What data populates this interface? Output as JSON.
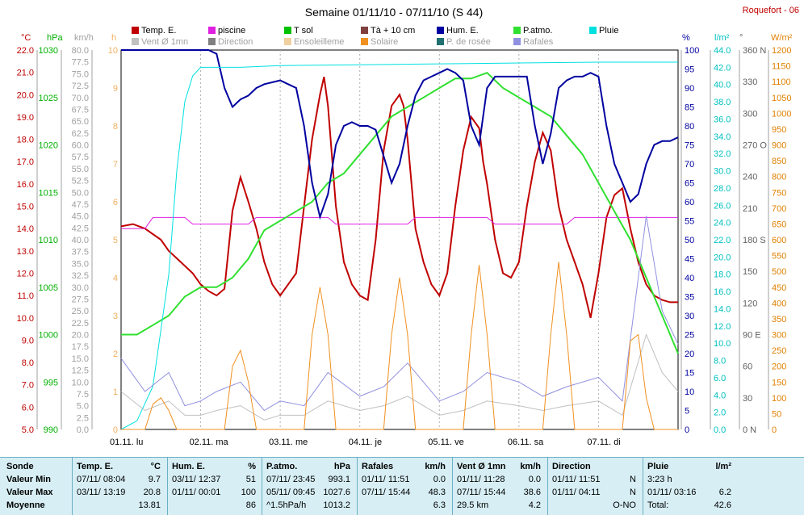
{
  "header": {
    "title": "Semaine 01/11/10 - 07/11/10 (S 44)",
    "station": "Roquefort - 06"
  },
  "legend": [
    {
      "label": "Temp. E.",
      "color": "#c00000"
    },
    {
      "label": "piscine",
      "color": "#e020e0"
    },
    {
      "label": "T sol",
      "color": "#00c000"
    },
    {
      "label": "Tà + 10 cm",
      "color": "#804040"
    },
    {
      "label": "Hum. E.",
      "color": "#0000a0"
    },
    {
      "label": "P.atmo.",
      "color": "#30e030"
    },
    {
      "label": "Pluie",
      "color": "#00e0e0"
    },
    {
      "label": "Vent Ø 1mn",
      "color": "#c0c0c0"
    },
    {
      "label": "Direction",
      "color": "#808080"
    },
    {
      "label": "Ensoleilleme",
      "color": "#f0d0a0"
    },
    {
      "label": "Solaire",
      "color": "#f09020"
    },
    {
      "label": "P. de rosée",
      "color": "#207070"
    },
    {
      "label": "Rafales",
      "color": "#9090e0"
    }
  ],
  "axes": {
    "temp": {
      "unit": "°C",
      "color": "#c00000",
      "ticks": [
        "22.0",
        "21.0",
        "20.0",
        "19.0",
        "18.0",
        "17.0",
        "16.0",
        "15.0",
        "14.0",
        "13.0",
        "12.0",
        "11.0",
        "10.0",
        "9.0",
        "8.0",
        "7.0",
        "6.0",
        "5.0"
      ]
    },
    "press": {
      "unit": "hPa",
      "color": "#00b000",
      "ticks": [
        "1030",
        "1025",
        "1020",
        "1015",
        "1010",
        "1005",
        "1000",
        "995",
        "990"
      ]
    },
    "wind": {
      "unit": "km/h",
      "color": "#a0a0a0",
      "ticks": [
        "80.0",
        "77.5",
        "75.0",
        "72.5",
        "70.0",
        "67.5",
        "65.0",
        "62.5",
        "60.0",
        "57.5",
        "55.0",
        "52.5",
        "50.0",
        "47.5",
        "45.0",
        "42.5",
        "40.0",
        "37.5",
        "35.0",
        "32.5",
        "30.0",
        "27.5",
        "25.0",
        "22.5",
        "20.0",
        "17.5",
        "15.0",
        "12.5",
        "10.0",
        "7.5",
        "5.0",
        "2.5",
        "0.0"
      ]
    },
    "sun": {
      "unit": "h",
      "color": "#f0b060",
      "ticks": [
        "10",
        "9",
        "8",
        "7",
        "6",
        "5",
        "4",
        "3",
        "2",
        "1",
        "0"
      ]
    },
    "hum": {
      "unit": "%",
      "color": "#0000a0",
      "ticks": [
        "100",
        "95",
        "90",
        "85",
        "80",
        "75",
        "70",
        "65",
        "60",
        "55",
        "50",
        "45",
        "40",
        "35",
        "30",
        "25",
        "20",
        "15",
        "10",
        "5",
        "0"
      ]
    },
    "rain": {
      "unit": "l/m²",
      "color": "#00c0c0",
      "ticks": [
        "44.0",
        "42.0",
        "40.0",
        "38.0",
        "36.0",
        "34.0",
        "32.0",
        "30.0",
        "28.0",
        "26.0",
        "24.0",
        "22.0",
        "20.0",
        "18.0",
        "16.0",
        "14.0",
        "12.0",
        "10.0",
        "8.0",
        "6.0",
        "4.0",
        "2.0",
        "0.0"
      ]
    },
    "dir": {
      "unit": "°",
      "color": "#606060",
      "ticks": [
        "360 N",
        "330",
        "300",
        "270 O",
        "240",
        "210",
        "180 S",
        "150",
        "120",
        "90 E",
        "60",
        "30",
        "0 N"
      ]
    },
    "solar": {
      "unit": "W/m²",
      "color": "#e08000",
      "ticks": [
        "1200",
        "1150",
        "1100",
        "1050",
        "1000",
        "950",
        "900",
        "850",
        "800",
        "750",
        "700",
        "650",
        "600",
        "550",
        "500",
        "450",
        "400",
        "350",
        "300",
        "250",
        "200",
        "150",
        "100",
        "50",
        "0"
      ]
    },
    "days": [
      "01.11. lu",
      "02.11. ma",
      "03.11. me",
      "04.11. je",
      "05.11. ve",
      "06.11. sa",
      "07.11. di"
    ]
  },
  "chart_data": {
    "type": "line",
    "x_unit": "days since 01.11.10 00:00",
    "x_range": [
      0,
      7
    ],
    "series": [
      {
        "name": "Temp. E.",
        "axis": "°C",
        "x": [
          0,
          0.15,
          0.3,
          0.5,
          0.6,
          0.75,
          0.9,
          1.0,
          1.1,
          1.2,
          1.3,
          1.4,
          1.5,
          1.6,
          1.7,
          1.8,
          1.9,
          2.0,
          2.1,
          2.2,
          2.3,
          2.4,
          2.5,
          2.55,
          2.6,
          2.7,
          2.8,
          2.9,
          3.0,
          3.1,
          3.2,
          3.3,
          3.4,
          3.5,
          3.55,
          3.6,
          3.7,
          3.8,
          3.9,
          4.0,
          4.1,
          4.2,
          4.3,
          4.4,
          4.5,
          4.55,
          4.6,
          4.7,
          4.8,
          4.9,
          5.0,
          5.1,
          5.2,
          5.3,
          5.4,
          5.5,
          5.6,
          5.7,
          5.8,
          5.9,
          6.0,
          6.1,
          6.2,
          6.3,
          6.4,
          6.5,
          6.55,
          6.6,
          6.7,
          6.8,
          6.9,
          7.0
        ],
        "values": [
          14.1,
          14.2,
          14.0,
          13.5,
          13.0,
          12.5,
          12.0,
          11.5,
          11.2,
          11.0,
          11.3,
          14.8,
          16.3,
          15.2,
          14.0,
          12.5,
          11.5,
          11.0,
          11.5,
          12.0,
          15.0,
          18.0,
          20.0,
          20.8,
          19.5,
          15.0,
          12.5,
          11.5,
          11.0,
          10.8,
          13.5,
          17.5,
          19.5,
          20.0,
          19.5,
          18.0,
          14.0,
          12.5,
          11.5,
          11.0,
          12.0,
          15.0,
          17.5,
          19.0,
          18.5,
          17.0,
          16.0,
          13.5,
          12.0,
          11.8,
          12.5,
          15.0,
          17.0,
          18.3,
          17.5,
          15.0,
          13.5,
          12.5,
          11.5,
          10.0,
          12.0,
          14.5,
          15.5,
          15.8,
          14.0,
          12.5,
          12.0,
          11.5,
          11.0,
          10.8,
          10.7,
          10.7
        ]
      },
      {
        "name": "piscine",
        "axis": "°C",
        "x": [
          0,
          0.3,
          0.4,
          0.8,
          0.9,
          1.6,
          1.7,
          2.6,
          2.7,
          3.6,
          3.7,
          4.6,
          4.7,
          5.6,
          5.7,
          6.0,
          7.0
        ],
        "values": [
          14.0,
          14.0,
          14.5,
          14.5,
          14.2,
          14.2,
          14.5,
          14.5,
          14.2,
          14.2,
          14.5,
          14.5,
          14.2,
          14.2,
          14.5,
          14.5,
          14.5
        ]
      },
      {
        "name": "P.atmo.",
        "axis": "hPa",
        "x": [
          0,
          0.2,
          0.4,
          0.6,
          0.8,
          1.0,
          1.2,
          1.4,
          1.6,
          1.8,
          2.0,
          2.2,
          2.4,
          2.6,
          2.8,
          3.0,
          3.2,
          3.4,
          3.6,
          3.8,
          4.0,
          4.2,
          4.4,
          4.6,
          4.8,
          5.0,
          5.2,
          5.4,
          5.6,
          5.8,
          6.0,
          6.2,
          6.4,
          6.6,
          6.8,
          7.0
        ],
        "values": [
          1000,
          1000,
          1001,
          1002,
          1004,
          1005,
          1005,
          1006,
          1008,
          1011,
          1012,
          1013,
          1014,
          1016,
          1017,
          1019,
          1021,
          1023,
          1024,
          1025,
          1026,
          1027,
          1027,
          1027.6,
          1026,
          1025,
          1024,
          1023,
          1021,
          1019,
          1016,
          1013,
          1010,
          1006,
          1002,
          998
        ]
      },
      {
        "name": "Hum. E.",
        "axis": "%",
        "x": [
          0,
          0.5,
          1.0,
          1.1,
          1.2,
          1.3,
          1.4,
          1.5,
          1.6,
          1.7,
          1.8,
          2.0,
          2.1,
          2.2,
          2.3,
          2.4,
          2.5,
          2.6,
          2.7,
          2.8,
          2.9,
          3.0,
          3.1,
          3.2,
          3.3,
          3.4,
          3.5,
          3.6,
          3.7,
          3.8,
          3.9,
          4.0,
          4.1,
          4.2,
          4.3,
          4.4,
          4.5,
          4.6,
          4.7,
          4.8,
          4.9,
          5.0,
          5.1,
          5.2,
          5.3,
          5.4,
          5.5,
          5.6,
          5.7,
          5.8,
          5.9,
          6.0,
          6.1,
          6.2,
          6.3,
          6.4,
          6.5,
          6.6,
          6.7,
          6.8,
          6.9,
          7.0
        ],
        "values": [
          100,
          100,
          100,
          100,
          99,
          90,
          85,
          87,
          88,
          90,
          91,
          92,
          91,
          90,
          80,
          65,
          56,
          62,
          75,
          80,
          81,
          80,
          80,
          79,
          72,
          65,
          70,
          80,
          88,
          92,
          93,
          94,
          95,
          94,
          92,
          80,
          75,
          90,
          93,
          93,
          93,
          93,
          93,
          80,
          70,
          78,
          90,
          92,
          93,
          93,
          94,
          93,
          80,
          70,
          65,
          60,
          62,
          70,
          75,
          76,
          76,
          77
        ]
      },
      {
        "name": "Pluie",
        "axis": "l/m²",
        "x": [
          0,
          0.2,
          0.4,
          0.6,
          0.7,
          0.8,
          0.9,
          1.0,
          1.5,
          2.0,
          3.0,
          4.0,
          5.0,
          6.0,
          7.0
        ],
        "values": [
          0,
          1,
          5,
          18,
          30,
          38,
          41,
          42,
          42,
          42.2,
          42.3,
          42.4,
          42.5,
          42.6,
          42.6
        ]
      },
      {
        "name": "Rafales",
        "axis": "km/h",
        "x": [
          0,
          0.3,
          0.6,
          0.8,
          1.0,
          1.2,
          1.5,
          1.8,
          2.0,
          2.3,
          2.6,
          3.0,
          3.3,
          3.6,
          4.0,
          4.3,
          4.6,
          5.0,
          5.3,
          5.6,
          6.0,
          6.3,
          6.6,
          6.8,
          7.0
        ],
        "values": [
          15,
          8,
          12,
          5,
          6,
          8,
          10,
          4,
          6,
          5,
          12,
          7,
          9,
          14,
          6,
          8,
          12,
          10,
          7,
          9,
          11,
          6,
          45,
          25,
          18
        ]
      },
      {
        "name": "Vent Ø 1mn",
        "axis": "km/h",
        "x": [
          0,
          0.3,
          0.6,
          0.8,
          1.0,
          1.2,
          1.5,
          1.8,
          2.0,
          2.3,
          2.6,
          3.0,
          3.3,
          3.6,
          4.0,
          4.3,
          4.6,
          5.0,
          5.3,
          5.6,
          6.0,
          6.3,
          6.6,
          6.8,
          7.0
        ],
        "values": [
          8,
          4,
          6,
          3,
          3,
          4,
          5,
          2,
          3,
          3,
          6,
          4,
          5,
          7,
          3,
          4,
          6,
          5,
          4,
          5,
          6,
          3,
          20,
          12,
          8
        ]
      },
      {
        "name": "Solaire",
        "axis": "W/m²",
        "x": [
          0,
          0.3,
          0.4,
          0.5,
          0.6,
          0.7,
          1.0,
          1.3,
          1.4,
          1.5,
          1.6,
          1.7,
          2.0,
          2.3,
          2.4,
          2.5,
          2.6,
          2.7,
          3.0,
          3.3,
          3.4,
          3.5,
          3.6,
          3.7,
          4.0,
          4.3,
          4.4,
          4.5,
          4.6,
          4.7,
          5.0,
          5.3,
          5.4,
          5.5,
          5.6,
          5.7,
          6.0,
          6.3,
          6.4,
          6.5,
          6.6,
          6.7,
          7.0
        ],
        "values": [
          0,
          0,
          80,
          100,
          60,
          0,
          0,
          0,
          200,
          250,
          150,
          0,
          0,
          0,
          300,
          450,
          300,
          0,
          0,
          0,
          300,
          480,
          300,
          0,
          0,
          0,
          300,
          520,
          300,
          0,
          0,
          0,
          300,
          530,
          300,
          0,
          0,
          0,
          280,
          300,
          100,
          0,
          0
        ]
      }
    ]
  },
  "summary": {
    "cols": [
      {
        "rows": [
          "Sonde",
          "Valeur Min",
          "Valeur Max",
          "Moyenne"
        ]
      },
      {
        "title": "Temp. E.",
        "unit": "°C",
        "rows": [
          [
            "07/11/ 08:04",
            "9.7"
          ],
          [
            "03/11/ 13:19",
            "20.8"
          ],
          [
            "",
            "13.81"
          ]
        ]
      },
      {
        "title": "Hum. E.",
        "unit": "%",
        "rows": [
          [
            "03/11/ 12:37",
            "51"
          ],
          [
            "01/11/ 00:01",
            "100"
          ],
          [
            "",
            "86"
          ]
        ]
      },
      {
        "title": "P.atmo.",
        "unit": "hPa",
        "rows": [
          [
            "07/11/ 23:45",
            "993.1"
          ],
          [
            "05/11/ 09:45",
            "1027.6"
          ],
          [
            "^1.5hPa/h",
            "1013.2"
          ]
        ]
      },
      {
        "title": "Rafales",
        "unit": "km/h",
        "rows": [
          [
            "01/11/ 11:51",
            "0.0"
          ],
          [
            "07/11/ 15:44",
            "48.3"
          ],
          [
            "",
            "6.3"
          ]
        ]
      },
      {
        "title": "Vent Ø 1mn",
        "unit": "km/h",
        "rows": [
          [
            "01/11/ 11:28",
            "0.0"
          ],
          [
            "07/11/ 15:44",
            "38.6"
          ],
          [
            "29.5 km",
            "4.2"
          ]
        ]
      },
      {
        "title": "Direction",
        "unit": "",
        "rows": [
          [
            "01/11/ 11:51",
            "N"
          ],
          [
            "01/11/ 04:11",
            "N"
          ],
          [
            "",
            "O-NO"
          ]
        ]
      },
      {
        "title": "Pluie",
        "unit": "l/m²",
        "rows": [
          [
            "3:23 h",
            ""
          ],
          [
            "01/11/ 03:16",
            "6.2"
          ],
          [
            "Total:",
            "42.6"
          ]
        ]
      }
    ]
  }
}
